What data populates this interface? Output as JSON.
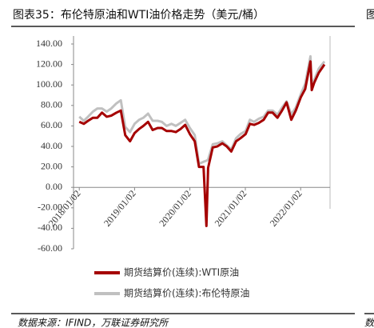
{
  "header": {
    "title": "图表35：布伦特原油和WTI油价格走势（美元/桶）",
    "title_fragment": "图"
  },
  "footer": {
    "source": "数据来源：IFIND，万联证券研究所",
    "source_fragment": "数"
  },
  "chart_data": {
    "type": "line",
    "x": [
      "2018/01/02",
      "2018/02/01",
      "2018/03/01",
      "2018/04/02",
      "2018/05/01",
      "2018/06/01",
      "2018/07/02",
      "2018/08/01",
      "2018/09/04",
      "2018/10/03",
      "2018/11/01",
      "2018/12/03",
      "2019/01/02",
      "2019/02/01",
      "2019/03/01",
      "2019/04/01",
      "2019/05/01",
      "2019/06/03",
      "2019/07/01",
      "2019/08/01",
      "2019/09/03",
      "2019/10/01",
      "2019/11/01",
      "2019/12/02",
      "2020/01/02",
      "2020/02/03",
      "2020/03/02",
      "2020/04/01",
      "2020/04/20",
      "2020/05/01",
      "2020/06/01",
      "2020/07/01",
      "2020/08/03",
      "2020/09/01",
      "2020/10/01",
      "2020/11/02",
      "2020/12/01",
      "2021/01/04",
      "2021/02/01",
      "2021/03/01",
      "2021/04/01",
      "2021/05/03",
      "2021/06/01",
      "2021/07/01",
      "2021/08/02",
      "2021/09/01",
      "2021/10/01",
      "2021/11/01",
      "2021/12/01",
      "2022/01/03",
      "2022/02/01",
      "2022/03/08",
      "2022/03/16",
      "2022/04/01",
      "2022/05/02",
      "2022/06/08"
    ],
    "series": [
      {
        "name": "期货结算价(连续):布伦特原油",
        "color": "#c0c0c0",
        "values": [
          69,
          65,
          69,
          74,
          77,
          77,
          74,
          77,
          82,
          85,
          59,
          54,
          62,
          66,
          68,
          72,
          65,
          65,
          64,
          60,
          62,
          60,
          63,
          66,
          58,
          51,
          23,
          25,
          26,
          27,
          42,
          43,
          45,
          41,
          37,
          48,
          52,
          55,
          66,
          64,
          67,
          69,
          75,
          75,
          71,
          78,
          84,
          71,
          78,
          91,
          101,
          128,
          98,
          105,
          116,
          123
        ]
      },
      {
        "name": "期货结算价(连续):WTI原油",
        "color": "#a50000",
        "values": [
          64,
          62,
          65,
          68,
          68,
          73,
          69,
          70,
          73,
          75,
          51,
          45,
          53,
          57,
          60,
          64,
          56,
          58,
          58,
          55,
          55,
          54,
          57,
          61,
          52,
          45,
          20,
          20,
          -37.63,
          19,
          39,
          40,
          43,
          40,
          35,
          45,
          48,
          52,
          62,
          61,
          63,
          66,
          73,
          73,
          68,
          75,
          83,
          66,
          75,
          88,
          96,
          123,
          95,
          102,
          112,
          120
        ]
      }
    ],
    "xlim": [
      "2017/11/25",
      "2022/07/15"
    ],
    "xticks": [
      "2018/01/02",
      "2019/01/02",
      "2020/01/02",
      "2021/01/02",
      "2022/01/02"
    ],
    "ylim": [
      -60,
      140
    ],
    "yticks": [
      {
        "value": 140,
        "label": "140.00"
      },
      {
        "value": 120,
        "label": "120.00"
      },
      {
        "value": 100,
        "label": "100.00"
      },
      {
        "value": 80,
        "label": "80.00"
      },
      {
        "value": 60,
        "label": "60.00"
      },
      {
        "value": 40,
        "label": "40.00"
      },
      {
        "value": 20,
        "label": "20.00"
      },
      {
        "value": 0,
        "label": "0.00"
      },
      {
        "value": -20,
        "label": "-20.00"
      },
      {
        "value": -40,
        "label": "-40.00"
      },
      {
        "value": -60,
        "label": "-60.00"
      }
    ],
    "grid": false
  }
}
